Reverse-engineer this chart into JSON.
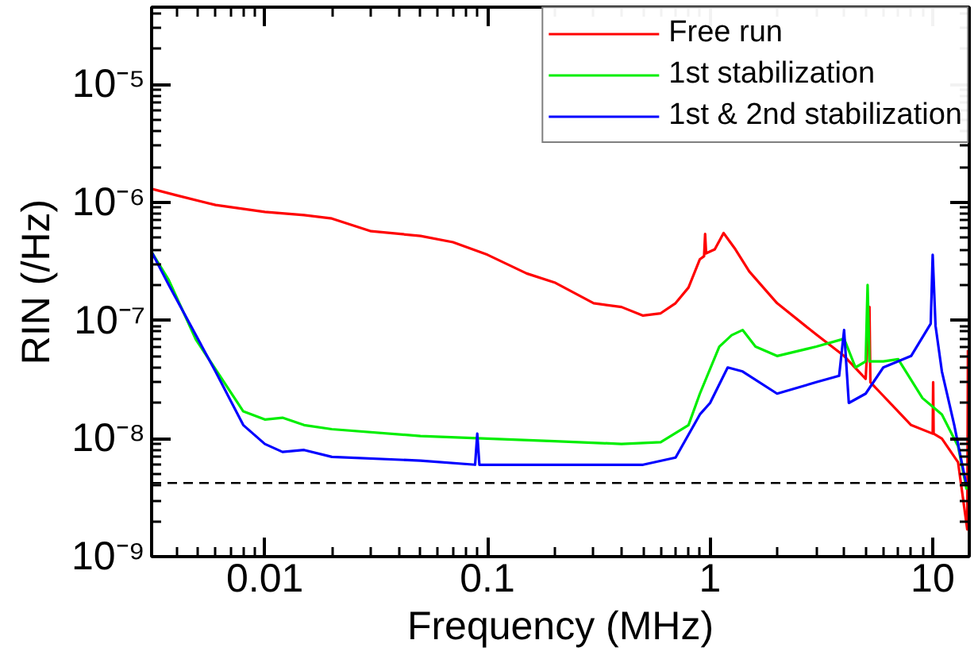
{
  "chart_data": {
    "type": "line",
    "xlabel": "Frequency (MHz)",
    "ylabel": "RIN (/Hz)",
    "log": "xy",
    "grid": false,
    "legend": "top right",
    "line_style": "solid",
    "marker": "none",
    "xlim": [
      0.0031,
      14.6
    ],
    "xticks": [
      0.01,
      0.1,
      1,
      10
    ],
    "ylim": [
      1e-09,
      4.5e-05
    ],
    "yticks": [
      {
        "value": 1e-09,
        "label": "10⁻⁹"
      },
      {
        "value": 1e-08,
        "label": "10⁻⁸"
      },
      {
        "value": 1e-07,
        "label": "10⁻⁷"
      },
      {
        "value": 1e-06,
        "label": "10⁻⁶"
      },
      {
        "value": 1e-05,
        "label": "10⁻⁵"
      }
    ],
    "ref_lines": [
      {
        "axis": "y",
        "value": 4.2e-09,
        "color": "#000000",
        "line_style": "dashed"
      }
    ],
    "series": [
      {
        "name": "Free run",
        "color": "#ff0000",
        "x": [
          0.0031,
          0.004,
          0.006,
          0.01,
          0.015,
          0.02,
          0.03,
          0.05,
          0.07,
          0.1,
          0.15,
          0.2,
          0.3,
          0.4,
          0.5,
          0.6,
          0.7,
          0.8,
          0.9,
          0.94,
          0.95,
          0.96,
          1.05,
          1.15,
          1.3,
          1.5,
          2,
          3,
          4,
          5,
          5.2,
          5.25,
          6,
          8,
          10,
          10.05,
          10.1,
          11,
          13,
          14.3,
          14.4
        ],
        "values": [
          1.3e-06,
          1.15e-06,
          9.5e-07,
          8.3e-07,
          7.8e-07,
          7.3e-07,
          5.7e-07,
          5.2e-07,
          4.6e-07,
          3.6e-07,
          2.5e-07,
          2.1e-07,
          1.4e-07,
          1.3e-07,
          1.1e-07,
          1.15e-07,
          1.4e-07,
          1.9e-07,
          3.3e-07,
          3.5e-07,
          5.4e-07,
          3.7e-07,
          4e-07,
          5.5e-07,
          4e-07,
          2.6e-07,
          1.4e-07,
          7.6e-08,
          5e-08,
          3.2e-08,
          1.3e-07,
          3e-08,
          2.3e-08,
          1.3e-08,
          1.1e-08,
          3e-08,
          1.1e-08,
          1e-08,
          6.3e-09,
          1.7e-09,
          5.6e-08
        ]
      },
      {
        "name": "1st stabilization",
        "color": "#00ee00",
        "x": [
          0.0031,
          0.0037,
          0.0049,
          0.008,
          0.01,
          0.012,
          0.015,
          0.02,
          0.05,
          0.1,
          0.2,
          0.4,
          0.6,
          0.8,
          0.9,
          1.1,
          1.25,
          1.4,
          1.6,
          2,
          3,
          4,
          4.5,
          5,
          5.1,
          5.2,
          6,
          7,
          9,
          11,
          13,
          14.2
        ],
        "values": [
          3.8e-07,
          2.2e-07,
          6.9e-08,
          1.7e-08,
          1.45e-08,
          1.5e-08,
          1.3e-08,
          1.2e-08,
          1.05e-08,
          1e-08,
          9.5e-09,
          9e-09,
          9.3e-09,
          1.3e-08,
          2.4e-08,
          6e-08,
          7.5e-08,
          8.3e-08,
          6e-08,
          5e-08,
          6e-08,
          7e-08,
          4e-08,
          4.5e-08,
          2e-07,
          4.5e-08,
          4.5e-08,
          4.7e-08,
          2.2e-08,
          1.6e-08,
          8.6e-09,
          3.7e-09
        ]
      },
      {
        "name": "1st & 2nd stabilization",
        "color": "#0000ff",
        "x": [
          0.0031,
          0.0037,
          0.006,
          0.008,
          0.01,
          0.012,
          0.015,
          0.02,
          0.05,
          0.088,
          0.09,
          0.092,
          0.2,
          0.5,
          0.7,
          0.9,
          1,
          1.2,
          1.4,
          2,
          3,
          3.8,
          4,
          4.2,
          5,
          6,
          8,
          9.8,
          10,
          10.3,
          11,
          12.5,
          13.5,
          14.2
        ],
        "values": [
          3.8e-07,
          2e-07,
          3.7e-08,
          1.3e-08,
          9e-09,
          7.7e-09,
          8e-09,
          7e-09,
          6.5e-09,
          6e-09,
          1.1e-08,
          6e-09,
          6e-09,
          6e-09,
          6.9e-09,
          1.6e-08,
          2e-08,
          4e-08,
          3.7e-08,
          2.4e-08,
          3e-08,
          3.4e-08,
          8.3e-08,
          2e-08,
          2.4e-08,
          4e-08,
          5e-08,
          9.4e-08,
          3.6e-07,
          9e-08,
          3.7e-08,
          1.3e-08,
          6.3e-09,
          4e-09
        ]
      }
    ]
  }
}
